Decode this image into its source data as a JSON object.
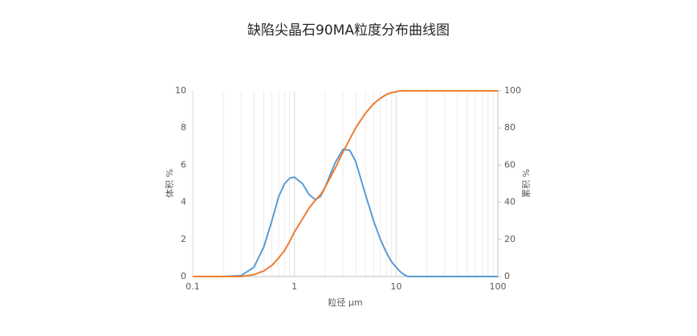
{
  "chart_data": {
    "type": "line",
    "title": "缺陷尖晶石90MA粒度分布曲线图",
    "x_label": "粒径  µm",
    "y_label": "体积 %",
    "y2_label": "累积 %",
    "x_scale": "log",
    "grid": true,
    "x": [
      0.1,
      0.2,
      0.3,
      0.4,
      0.5,
      0.6,
      0.7,
      0.8,
      0.9,
      1,
      1.2,
      1.4,
      1.6,
      1.8,
      2,
      2.5,
      3,
      3.5,
      4,
      5,
      6,
      7,
      8,
      9,
      10,
      11,
      12,
      13,
      15,
      20,
      50,
      100
    ],
    "series": [
      {
        "name": "体积",
        "color": "#5b9bd5",
        "values": [
          0,
          0,
          0.05,
          0.5,
          1.6,
          3.0,
          4.3,
          5.0,
          5.3,
          5.35,
          5.0,
          4.4,
          4.15,
          4.3,
          4.8,
          6.1,
          6.85,
          6.8,
          6.2,
          4.4,
          3.0,
          2.0,
          1.3,
          0.8,
          0.5,
          0.25,
          0.1,
          0,
          0,
          0,
          0,
          0
        ]
      },
      {
        "name": "累积",
        "color": "#ed7d31",
        "axis": "y2",
        "values": [
          0,
          0,
          0,
          1,
          3,
          6,
          10,
          14,
          19,
          24,
          31,
          37,
          41,
          44,
          48,
          58,
          67,
          74,
          80,
          88,
          93,
          96,
          98,
          99,
          99.5,
          100,
          100,
          100,
          100,
          100,
          100,
          100
        ]
      }
    ],
    "xlim": [
      0.1,
      100
    ],
    "xticks": [
      0.1,
      1,
      10,
      100
    ],
    "ylim": [
      0,
      10
    ],
    "yticks": [
      0,
      2,
      4,
      6,
      8,
      10
    ],
    "y2lim": [
      0,
      100
    ],
    "y2ticks": [
      0,
      20,
      40,
      60,
      80,
      100
    ]
  }
}
